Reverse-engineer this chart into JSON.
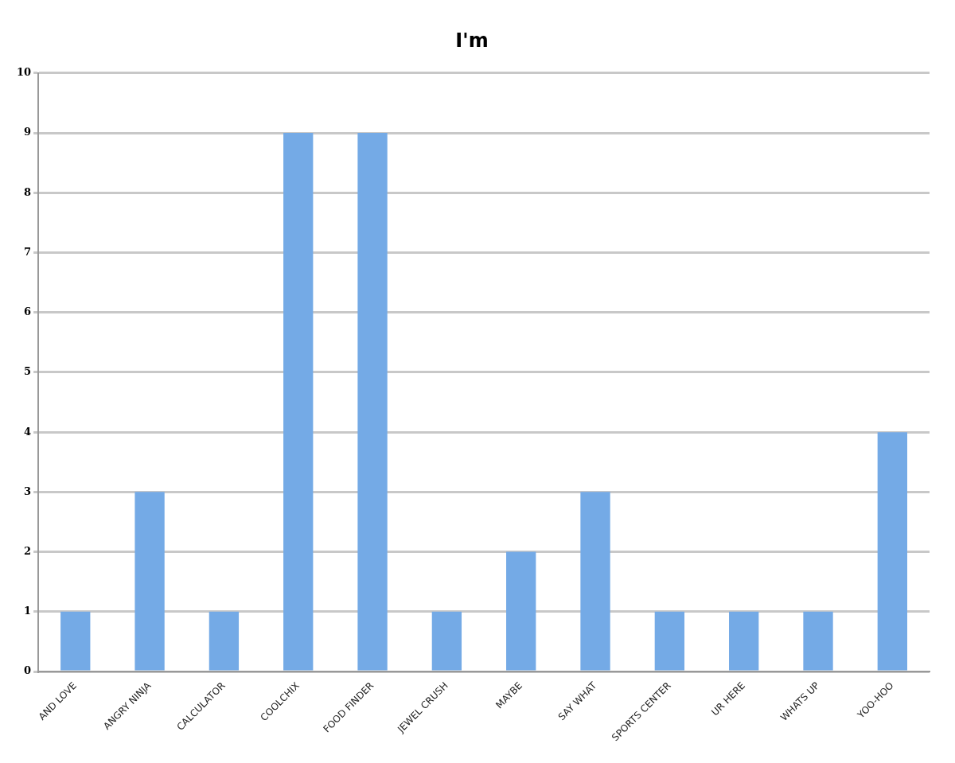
{
  "chart_data": {
    "type": "bar",
    "title": "I'm",
    "categories": [
      "AND LOVE",
      "ANGRY NINJA",
      "CALCULATOR",
      "COOLCHIX",
      "FOOD FINDER",
      "JEWEL CRUSH",
      "MAYBE",
      "SAY WHAT",
      "SPORTS CENTER",
      "UR HERE",
      "WHATS UP",
      "YOO-HOO"
    ],
    "values": [
      1,
      3,
      1,
      9,
      9,
      1,
      2,
      3,
      1,
      1,
      1,
      4
    ],
    "color": "#74aae6",
    "ylim": [
      0,
      10
    ],
    "yticks": [
      0,
      1,
      2,
      3,
      4,
      5,
      6,
      7,
      8,
      9,
      10
    ],
    "grid": "y"
  }
}
